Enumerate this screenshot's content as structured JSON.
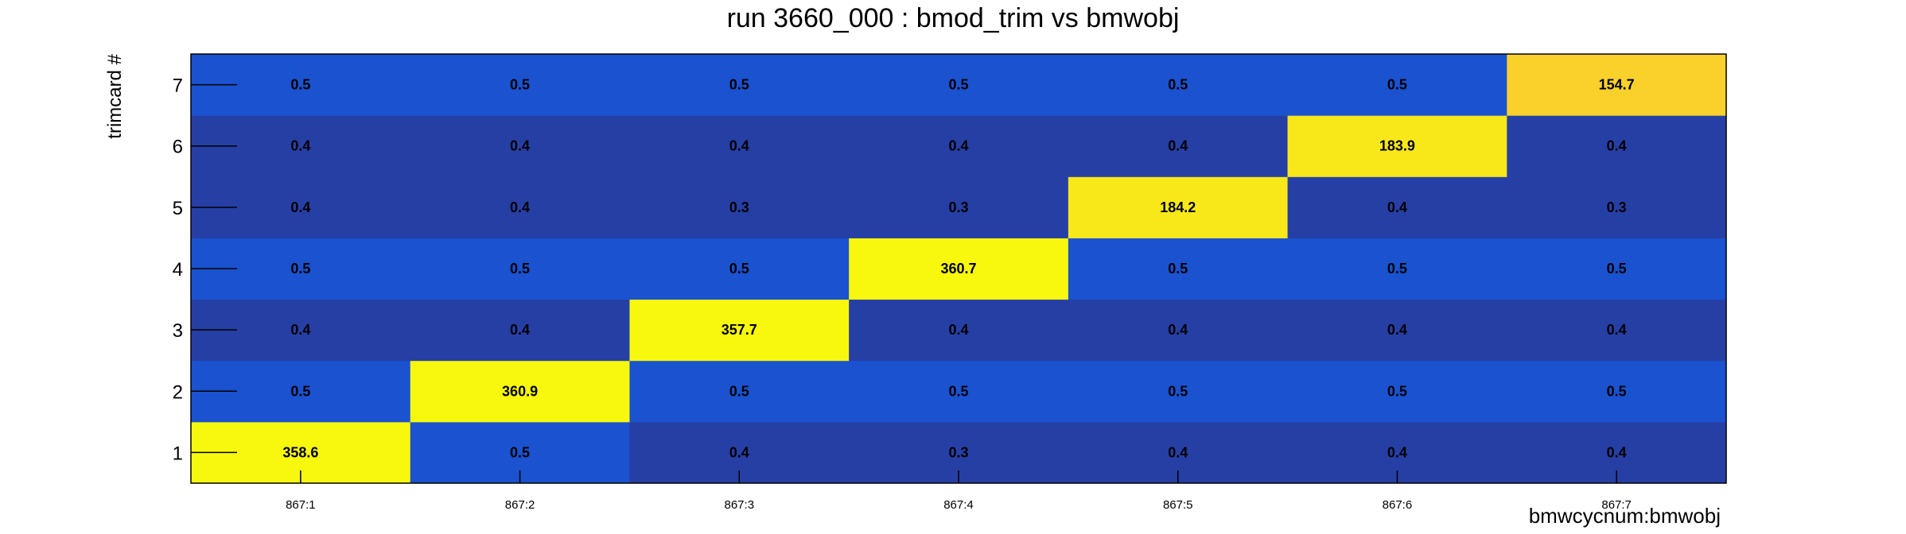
{
  "chart_data": {
    "type": "heatmap",
    "title": "run 3660_000 : bmod_trim vs bmwobj",
    "xlabel": "bmwcycnum:bmwobj",
    "ylabel": "trimcard #",
    "x_categories": [
      "867:1",
      "867:2",
      "867:3",
      "867:4",
      "867:5",
      "867:6",
      "867:7"
    ],
    "y_categories": [
      "1",
      "2",
      "3",
      "4",
      "5",
      "6",
      "7"
    ],
    "values_by_row": [
      [
        358.6,
        0.5,
        0.4,
        0.3,
        0.4,
        0.4,
        0.4
      ],
      [
        0.5,
        360.9,
        0.5,
        0.5,
        0.5,
        0.5,
        0.5
      ],
      [
        0.4,
        0.4,
        357.7,
        0.4,
        0.4,
        0.4,
        0.4
      ],
      [
        0.5,
        0.5,
        0.5,
        360.7,
        0.5,
        0.5,
        0.5
      ],
      [
        0.4,
        0.4,
        0.3,
        0.3,
        184.2,
        0.4,
        0.3
      ],
      [
        0.4,
        0.4,
        0.4,
        0.4,
        0.4,
        183.9,
        0.4
      ],
      [
        0.5,
        0.5,
        0.5,
        0.5,
        0.5,
        0.5,
        154.7
      ]
    ],
    "colors": {
      "low": "#263fa5",
      "mid_low": "#1a52cf",
      "high_1": "#f8f80e",
      "high_2": "#f8e81a",
      "high_3": "#fad12a"
    },
    "grid": false,
    "legend": "none"
  }
}
